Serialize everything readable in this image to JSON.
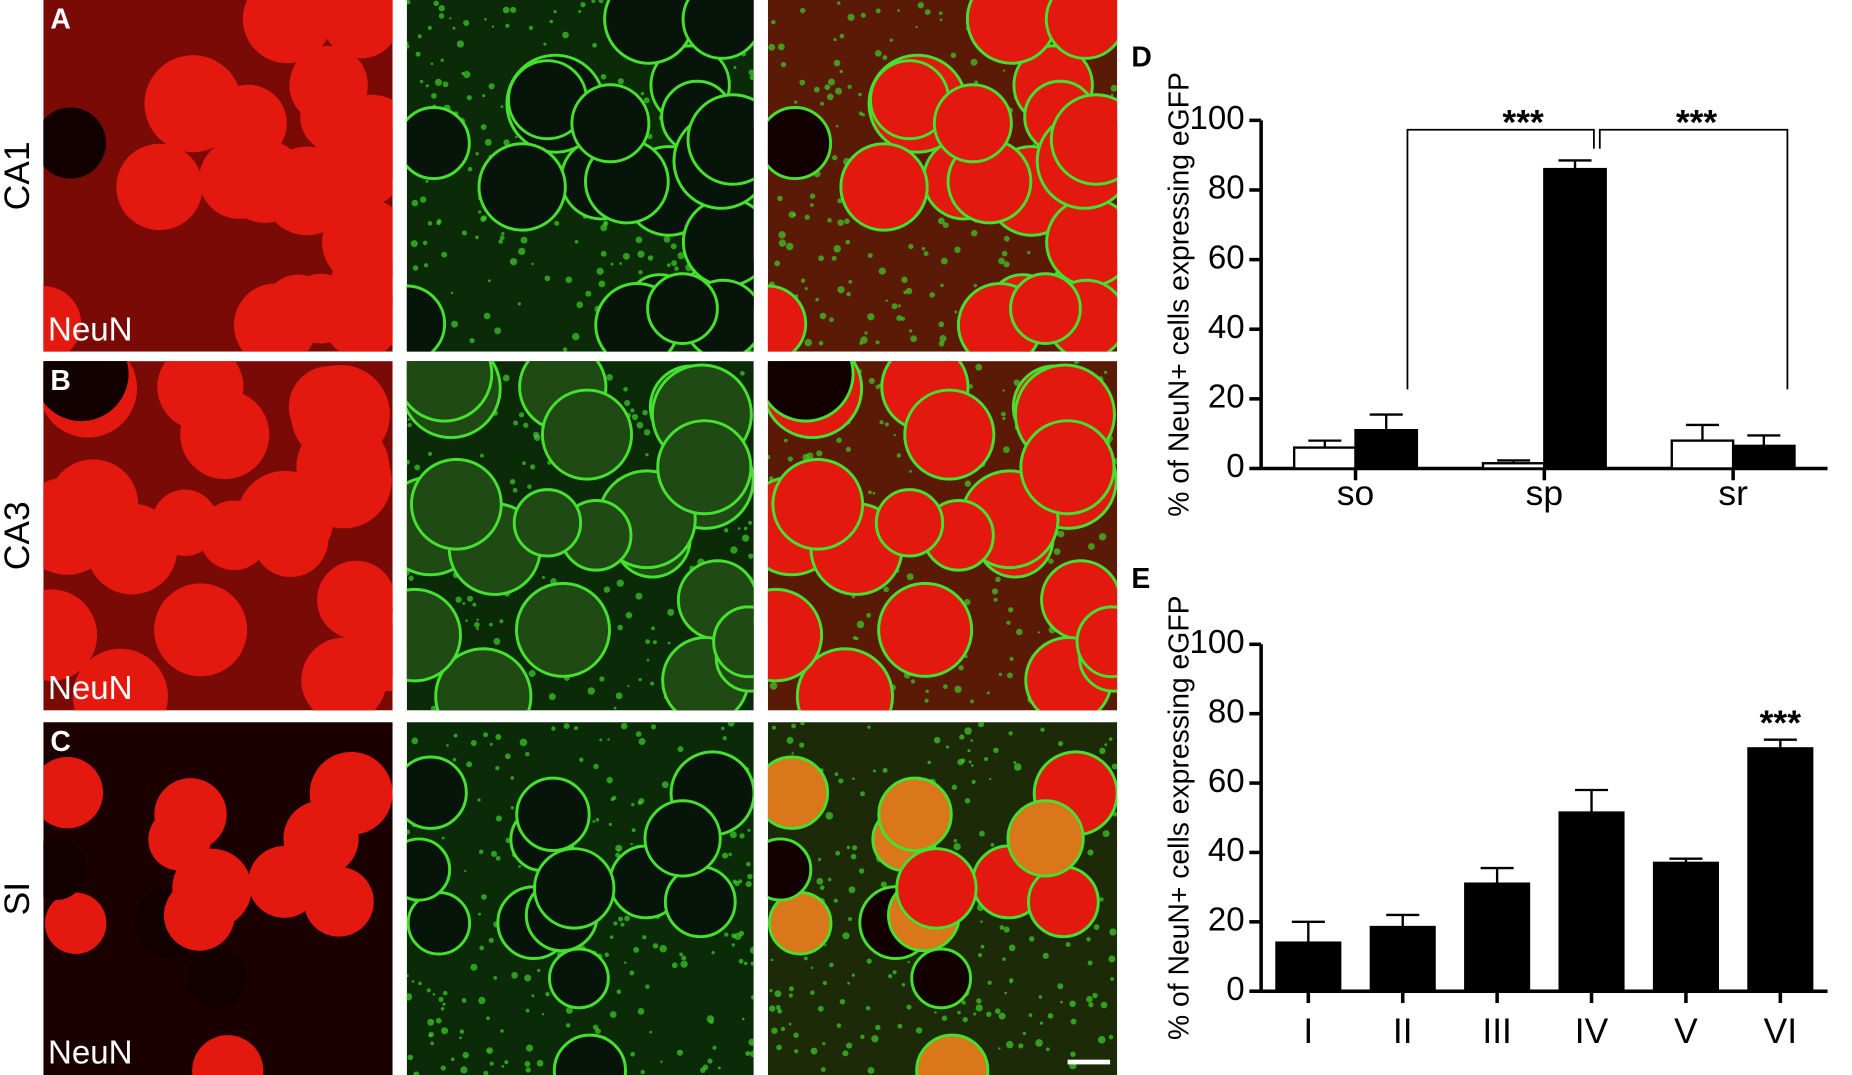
{
  "panels": {
    "rows": [
      {
        "letter": "A",
        "region": "CA1",
        "stain": "NeuN"
      },
      {
        "letter": "B",
        "region": "CA3",
        "stain": "NeuN"
      },
      {
        "letter": "C",
        "region": "SI",
        "stain": "NeuN"
      }
    ]
  },
  "chart_data": [
    {
      "type": "bar",
      "panel_letter": "D",
      "y_label": "% of NeuN+ cells expressing eGFP",
      "categories": [
        "so",
        "sp",
        "sr"
      ],
      "series": [
        {
          "color": "#ffffff",
          "values": [
            6,
            1.5,
            8
          ],
          "errors": [
            2,
            0.8,
            4.5
          ]
        },
        {
          "color": "#000000",
          "values": [
            11,
            86,
            6.5
          ],
          "errors": [
            4.5,
            2.5,
            3
          ]
        }
      ],
      "annotations": [
        "***",
        "***"
      ],
      "ylim": [
        0,
        100
      ],
      "yticks": [
        0,
        20,
        40,
        60,
        80,
        100
      ]
    },
    {
      "type": "bar",
      "panel_letter": "E",
      "y_label": "% of NeuN+ cells expressing eGFP",
      "categories": [
        "I",
        "II",
        "III",
        "IV",
        "V",
        "VI"
      ],
      "series": [
        {
          "color": "#000000",
          "values": [
            14,
            18.5,
            31,
            51.5,
            37,
            70
          ],
          "errors": [
            6,
            3.5,
            4.5,
            6.5,
            1.2,
            2.5
          ]
        }
      ],
      "annotations": [
        "***"
      ],
      "ylim": [
        0,
        100
      ],
      "yticks": [
        0,
        20,
        40,
        60,
        80,
        100
      ]
    }
  ]
}
